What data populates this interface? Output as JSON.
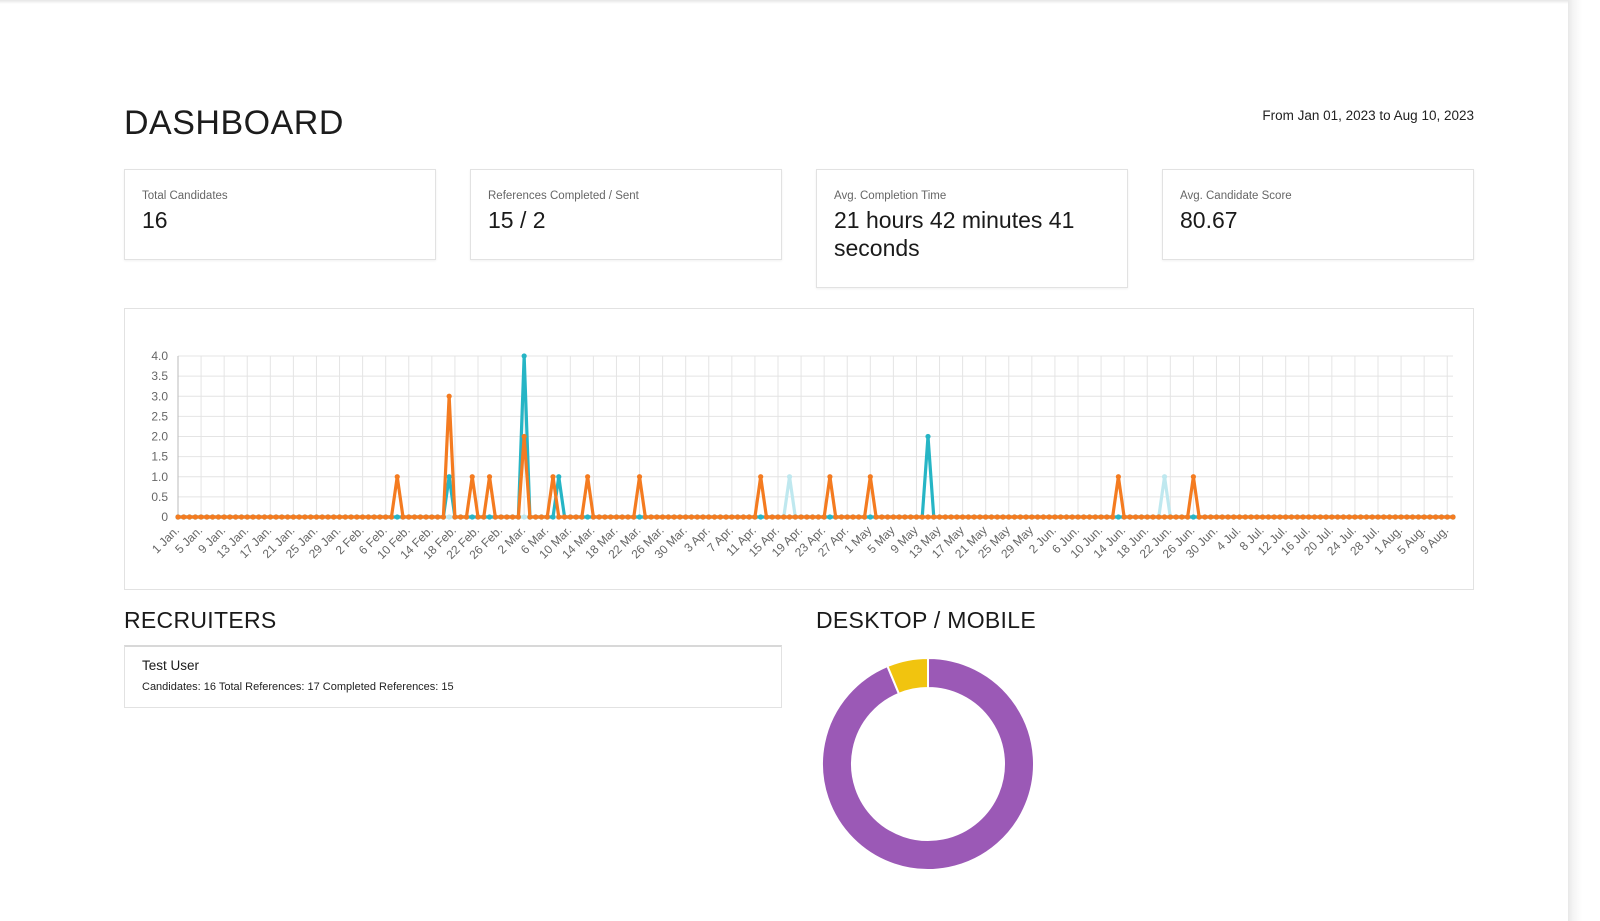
{
  "header": {
    "title": "DASHBOARD",
    "date_range": "From Jan 01, 2023 to Aug 10, 2023"
  },
  "stats": [
    {
      "label": "Total Candidates",
      "value": "16"
    },
    {
      "label": "References Completed / Sent",
      "value": "15 / 2"
    },
    {
      "label": "Avg. Completion Time",
      "value": "21 hours 42 minutes 41 seconds"
    },
    {
      "label": "Avg. Candidate Score",
      "value": "80.67"
    }
  ],
  "chart_data": {
    "type": "line",
    "x_start": "2023-01-01",
    "days": 222,
    "ylim": [
      0,
      4
    ],
    "yticks": [
      "0",
      "0.5",
      "1.0",
      "1.5",
      "2.0",
      "2.5",
      "3.0",
      "3.5",
      "4.0"
    ],
    "xtick_labels": [
      "1 Jan.",
      "5 Jan.",
      "9 Jan.",
      "13 Jan.",
      "17 Jan.",
      "21 Jan.",
      "25 Jan.",
      "29 Jan.",
      "2 Feb.",
      "6 Feb.",
      "10 Feb.",
      "14 Feb.",
      "18 Feb.",
      "22 Feb.",
      "26 Feb.",
      "2 Mar.",
      "6 Mar.",
      "10 Mar.",
      "14 Mar.",
      "18 Mar.",
      "22 Mar.",
      "26 Mar.",
      "30 Mar.",
      "3 Apr.",
      "7 Apr.",
      "11 Apr.",
      "15 Apr.",
      "19 Apr.",
      "23 Apr.",
      "27 Apr.",
      "1 May",
      "5 May",
      "9 May",
      "13 May",
      "17 May",
      "21 May",
      "25 May",
      "29 May",
      "2 Jun.",
      "6 Jun.",
      "10 Jun.",
      "14 Jun.",
      "18 Jun.",
      "22 Jun.",
      "26 Jun.",
      "30 Jun.",
      "4 Jul.",
      "8 Jul.",
      "12 Jul.",
      "16 Jul.",
      "20 Jul.",
      "24 Jul.",
      "28 Jul.",
      "1 Aug.",
      "5 Aug.",
      "9 Aug."
    ],
    "series": [
      {
        "color": "#f47b20",
        "nonzero": {
          "2023-02-08": 1,
          "2023-02-17": 3,
          "2023-02-21": 1,
          "2023-02-24": 1,
          "2023-03-02": 2,
          "2023-03-07": 1,
          "2023-03-13": 1,
          "2023-03-22": 1,
          "2023-04-12": 1,
          "2023-04-24": 1,
          "2023-05-01": 1,
          "2023-06-13": 1,
          "2023-06-26": 1
        }
      },
      {
        "color": "#26b5c5",
        "nonzero": {
          "2023-02-17": 1,
          "2023-03-02": 4,
          "2023-03-08": 1,
          "2023-05-11": 2
        }
      },
      {
        "color": "#bfe8ef",
        "nonzero": {
          "2023-04-17": 1,
          "2023-06-21": 1
        }
      }
    ],
    "grid": true,
    "legend": "none"
  },
  "recruiters": {
    "title": "RECRUITERS",
    "items": [
      {
        "name": "Test User",
        "stats": "Candidates: 16 Total References: 17 Completed References: 15"
      }
    ]
  },
  "device": {
    "title": "DESKTOP / MOBILE",
    "chart_data": {
      "type": "pie",
      "segments": [
        {
          "value": 15,
          "color": "#9b59b6"
        },
        {
          "value": 1,
          "color": "#f1c40f"
        }
      ]
    }
  }
}
